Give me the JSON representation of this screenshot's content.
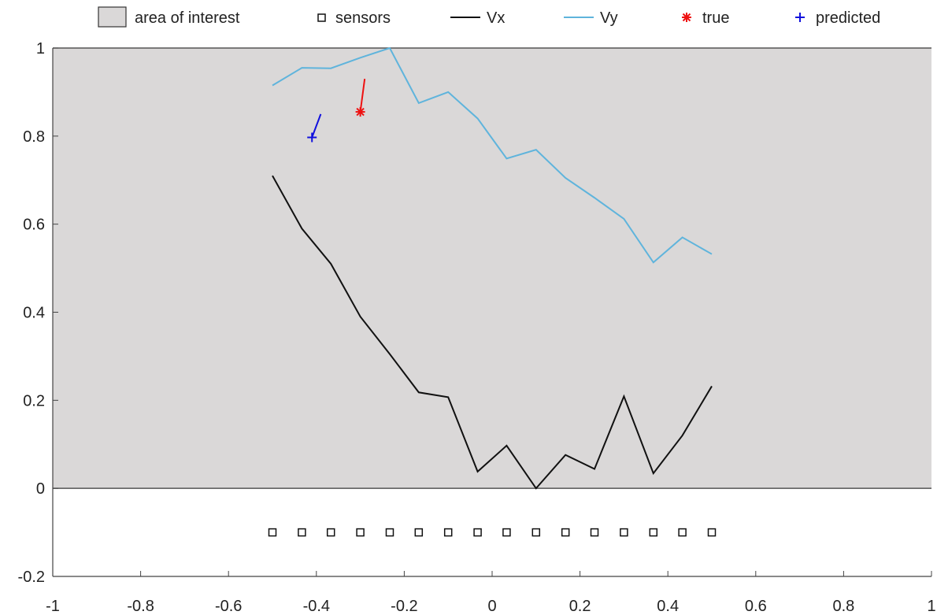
{
  "chart_data": {
    "type": "line",
    "xlim": [
      -1,
      1
    ],
    "ylim": [
      -0.2,
      1
    ],
    "grid": false,
    "legend_placement": "top",
    "x_ticks": [
      -1,
      -0.8,
      -0.6,
      -0.4,
      -0.2,
      0,
      0.2,
      0.4,
      0.6,
      0.8,
      1
    ],
    "x_tick_labels": [
      "-1",
      "-0.8",
      "-0.6",
      "-0.4",
      "-0.2",
      "0",
      "0.2",
      "0.4",
      "0.6",
      "0.8",
      "1"
    ],
    "y_ticks": [
      -0.2,
      0,
      0.2,
      0.4,
      0.6,
      0.8,
      1
    ],
    "y_tick_labels": [
      "-0.2",
      "0",
      "0.2",
      "0.4",
      "0.6",
      "0.8",
      "1"
    ],
    "legend": [
      "area of interest",
      "sensors",
      "Vx",
      "Vy",
      "true",
      "predicted"
    ],
    "area_of_interest": {
      "x": [
        -1,
        1
      ],
      "y": [
        0,
        1
      ],
      "color": "#dad8d8"
    },
    "sensors": {
      "x": [
        -0.5,
        -0.433,
        -0.367,
        -0.3,
        -0.233,
        -0.167,
        -0.1,
        -0.033,
        0.033,
        0.1,
        0.167,
        0.233,
        0.3,
        0.367,
        0.433,
        0.5
      ],
      "y": [
        -0.1,
        -0.1,
        -0.1,
        -0.1,
        -0.1,
        -0.1,
        -0.1,
        -0.1,
        -0.1,
        -0.1,
        -0.1,
        -0.1,
        -0.1,
        -0.1,
        -0.1,
        -0.1
      ]
    },
    "series": [
      {
        "name": "Vx",
        "color": "#111111",
        "x": [
          -0.5,
          -0.433,
          -0.367,
          -0.3,
          -0.233,
          -0.167,
          -0.1,
          -0.033,
          0.033,
          0.1,
          0.167,
          0.233,
          0.3,
          0.367,
          0.433,
          0.5
        ],
        "y": [
          0.71,
          0.59,
          0.51,
          0.39,
          0.305,
          0.218,
          0.207,
          0.038,
          0.097,
          0.0,
          0.076,
          0.044,
          0.209,
          0.034,
          0.12,
          0.232
        ]
      },
      {
        "name": "Vy",
        "color": "#5fb4dc",
        "x": [
          -0.5,
          -0.433,
          -0.367,
          -0.3,
          -0.233,
          -0.167,
          -0.1,
          -0.033,
          0.033,
          0.1,
          0.167,
          0.233,
          0.3,
          0.367,
          0.433,
          0.5
        ],
        "y": [
          0.915,
          0.955,
          0.954,
          0.978,
          1.0,
          0.875,
          0.9,
          0.84,
          0.749,
          0.769,
          0.705,
          0.66,
          0.612,
          0.513,
          0.57,
          0.532
        ]
      }
    ],
    "true_point": {
      "name": "true",
      "x": -0.3,
      "y": 0.855,
      "arrow_to": [
        -0.29,
        0.93
      ],
      "color": "#ee1111"
    },
    "predicted_point": {
      "name": "predicted",
      "x": -0.41,
      "y": 0.797,
      "arrow_to": [
        -0.39,
        0.85
      ],
      "color": "#1111dd"
    }
  }
}
